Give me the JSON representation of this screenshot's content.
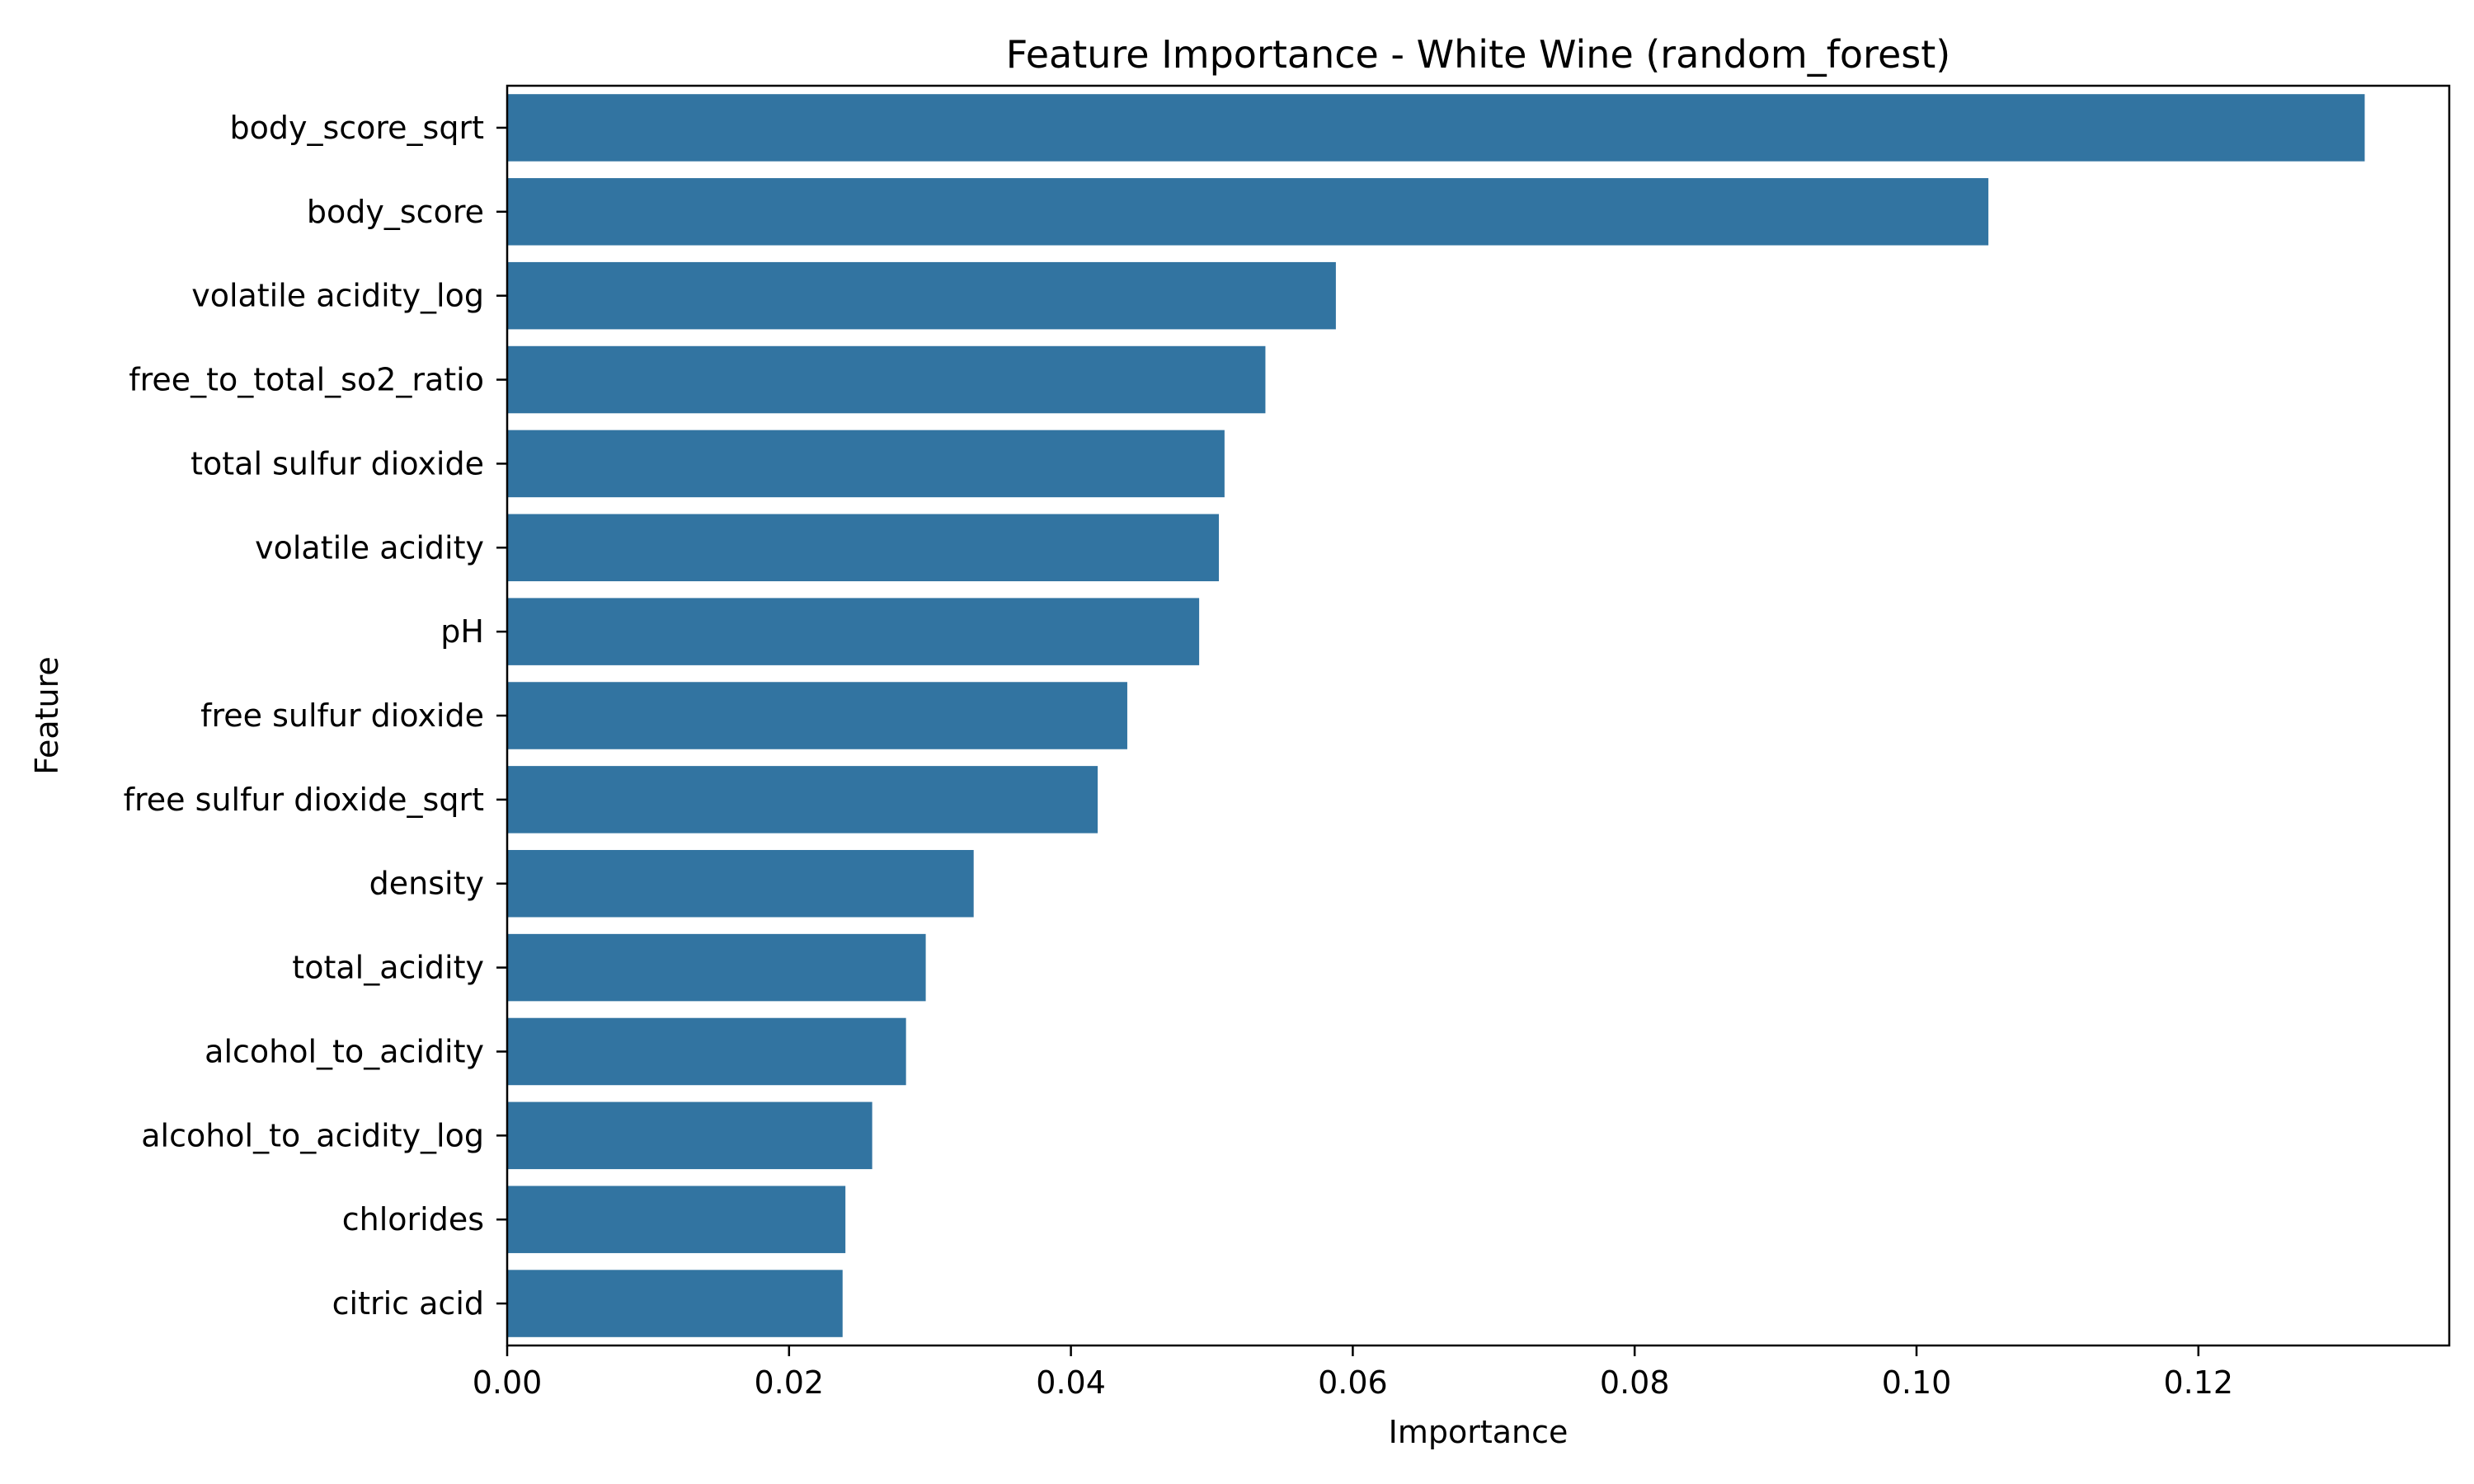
{
  "colors": {
    "bar": "#3274a1",
    "axis": "#000000",
    "background": "#ffffff"
  },
  "chart_data": {
    "type": "bar",
    "orientation": "horizontal",
    "title": "Feature Importance - White Wine (random_forest)",
    "xlabel": "Importance",
    "ylabel": "Feature",
    "xlim": [
      0,
      0.1378
    ],
    "xticks": [
      "0.00",
      "0.02",
      "0.04",
      "0.06",
      "0.08",
      "0.10",
      "0.12"
    ],
    "grid": false,
    "categories": [
      "body_score_sqrt",
      "body_score",
      "volatile acidity_log",
      "free_to_total_so2_ratio",
      "total sulfur dioxide",
      "volatile acidity",
      "pH",
      "free sulfur dioxide",
      "free sulfur dioxide_sqrt",
      "density",
      "total_acidity",
      "alcohol_to_acidity",
      "alcohol_to_acidity_log",
      "chlorides",
      "citric acid"
    ],
    "values": [
      0.1318,
      0.1051,
      0.0588,
      0.0538,
      0.0509,
      0.0505,
      0.0491,
      0.044,
      0.0419,
      0.0331,
      0.0297,
      0.0283,
      0.0259,
      0.024,
      0.0238
    ]
  }
}
